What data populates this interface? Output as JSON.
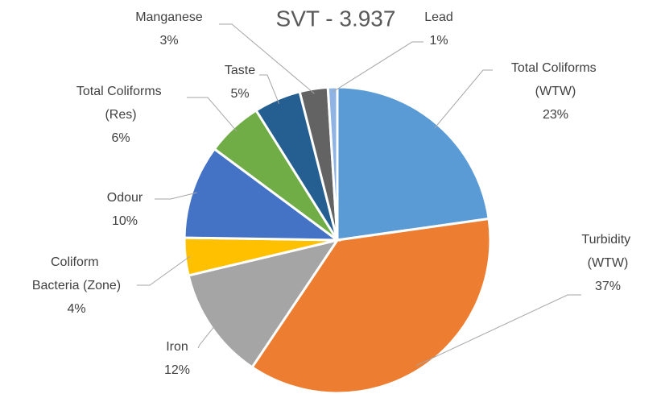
{
  "chart_data": {
    "type": "pie",
    "title": "SVT - 3.937",
    "categories": [
      "Total Coliforms (WTW)",
      "Turbidity (WTW)",
      "Iron",
      "Coliform Bacteria (Zone)",
      "Odour",
      "Total Coliforms (Res)",
      "Taste",
      "Manganese",
      "Lead"
    ],
    "values": [
      23,
      37,
      12,
      4,
      10,
      6,
      5,
      3,
      1
    ],
    "value_labels": [
      "23%",
      "37%",
      "12%",
      "4%",
      "10%",
      "6%",
      "5%",
      "3%",
      "1%"
    ],
    "colors": [
      "#5b9bd5",
      "#ed7d31",
      "#a5a5a5",
      "#ffc000",
      "#4472c4",
      "#70ad47",
      "#255e91",
      "#636363",
      "#8fb4e3"
    ]
  }
}
